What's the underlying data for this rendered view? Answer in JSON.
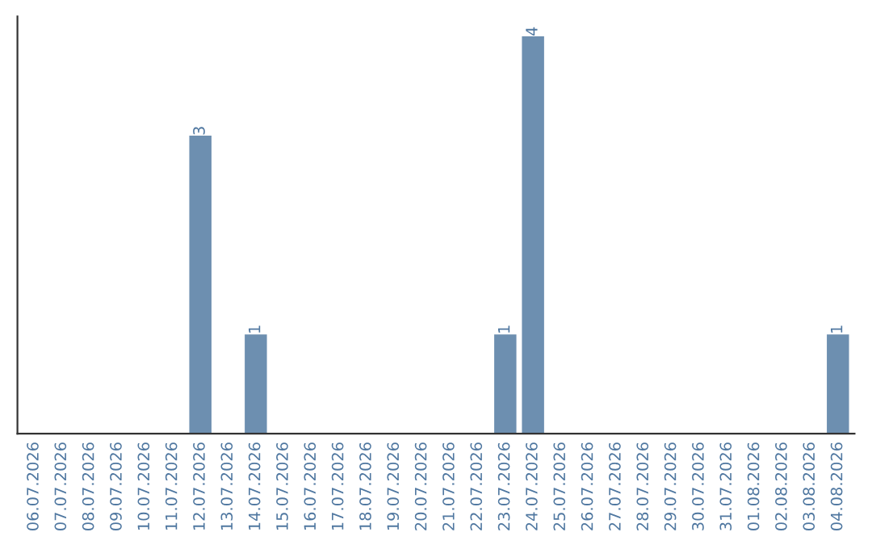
{
  "chart_data": {
    "type": "bar",
    "categories": [
      "06.07.2026",
      "07.07.2026",
      "08.07.2026",
      "09.07.2026",
      "10.07.2026",
      "11.07.2026",
      "12.07.2026",
      "13.07.2026",
      "14.07.2026",
      "15.07.2026",
      "16.07.2026",
      "17.07.2026",
      "18.07.2026",
      "19.07.2026",
      "20.07.2026",
      "21.07.2026",
      "22.07.2026",
      "23.07.2026",
      "24.07.2026",
      "25.07.2026",
      "26.07.2026",
      "27.07.2026",
      "28.07.2026",
      "29.07.2026",
      "30.07.2026",
      "31.07.2026",
      "01.08.2026",
      "02.08.2026",
      "03.08.2026",
      "04.08.2026"
    ],
    "values": [
      0,
      0,
      0,
      0,
      0,
      0,
      3,
      0,
      1,
      0,
      0,
      0,
      0,
      0,
      0,
      0,
      0,
      1,
      4,
      0,
      0,
      0,
      0,
      0,
      0,
      0,
      0,
      0,
      0,
      1
    ],
    "value_labels": [
      null,
      null,
      null,
      null,
      null,
      null,
      "3",
      null,
      "1",
      null,
      null,
      null,
      null,
      null,
      null,
      null,
      null,
      "1",
      "4",
      null,
      null,
      null,
      null,
      null,
      null,
      null,
      null,
      null,
      null,
      "1"
    ],
    "color": "#6d8fb0",
    "tick_labels": "x",
    "grid": false
  }
}
